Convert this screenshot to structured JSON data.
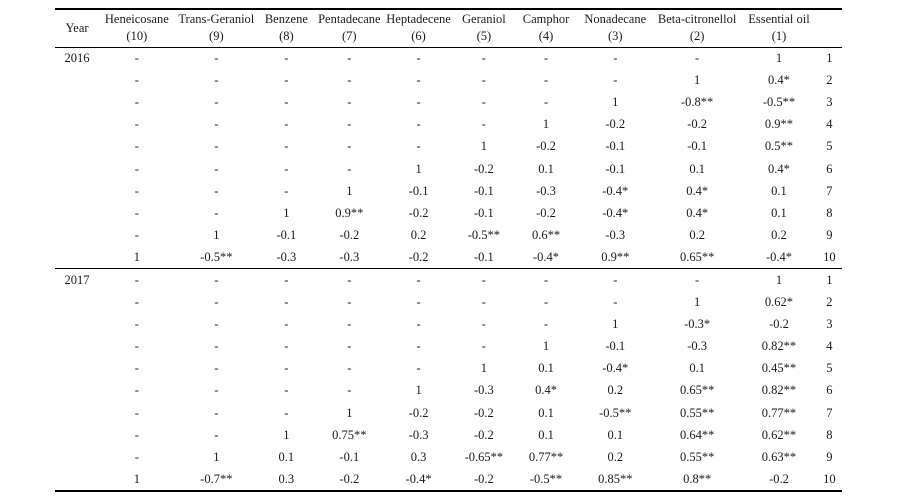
{
  "table": {
    "columns": [
      {
        "name": "Year",
        "sub": ""
      },
      {
        "name": "Heneicosane",
        "sub": "(10)"
      },
      {
        "name": "Trans-Geraniol",
        "sub": "(9)"
      },
      {
        "name": "Benzene",
        "sub": "(8)"
      },
      {
        "name": "Pentadecane",
        "sub": "(7)"
      },
      {
        "name": "Heptadecene",
        "sub": "(6)"
      },
      {
        "name": "Geraniol",
        "sub": "(5)"
      },
      {
        "name": "Camphor",
        "sub": "(4)"
      },
      {
        "name": "Nonadecane",
        "sub": "(3)"
      },
      {
        "name": "Beta-citronellol",
        "sub": "(2)"
      },
      {
        "name": "Essential oil",
        "sub": "(1)"
      },
      {
        "name": "",
        "sub": ""
      }
    ],
    "blocks": [
      {
        "year": "2016",
        "rows": [
          {
            "cells": [
              "-",
              "-",
              "-",
              "-",
              "-",
              "-",
              "-",
              "-",
              "-",
              "1"
            ],
            "num": "1"
          },
          {
            "cells": [
              "-",
              "-",
              "-",
              "-",
              "-",
              "-",
              "-",
              "-",
              "1",
              "0.4*"
            ],
            "num": "2"
          },
          {
            "cells": [
              "-",
              "-",
              "-",
              "-",
              "-",
              "-",
              "-",
              "1",
              "-0.8**",
              "-0.5**"
            ],
            "num": "3"
          },
          {
            "cells": [
              "-",
              "-",
              "-",
              "-",
              "-",
              "-",
              "1",
              "-0.2",
              "-0.2",
              "0.9**"
            ],
            "num": "4"
          },
          {
            "cells": [
              "-",
              "-",
              "-",
              "-",
              "-",
              "1",
              "-0.2",
              "-0.1",
              "-0.1",
              "0.5**"
            ],
            "num": "5"
          },
          {
            "cells": [
              "-",
              "-",
              "-",
              "-",
              "1",
              "-0.2",
              "0.1",
              "-0.1",
              "0.1",
              "0.4*"
            ],
            "num": "6"
          },
          {
            "cells": [
              "-",
              "-",
              "-",
              "1",
              "-0.1",
              "-0.1",
              "-0.3",
              "-0.4*",
              "0.4*",
              "0.1"
            ],
            "num": "7"
          },
          {
            "cells": [
              "-",
              "-",
              "1",
              "0.9**",
              "-0.2",
              "-0.1",
              "-0.2",
              "-0.4*",
              "0.4*",
              "0.1"
            ],
            "num": "8"
          },
          {
            "cells": [
              "-",
              "1",
              "-0.1",
              "-0.2",
              "0.2",
              "-0.5**",
              "0.6**",
              "-0.3",
              "0.2",
              "0.2"
            ],
            "num": "9"
          },
          {
            "cells": [
              "1",
              "-0.5**",
              "-0.3",
              "-0.3",
              "-0.2",
              "-0.1",
              "-0.4*",
              "0.9**",
              "0.65**",
              "-0.4*"
            ],
            "num": "10"
          }
        ]
      },
      {
        "year": "2017",
        "rows": [
          {
            "cells": [
              "-",
              "-",
              "-",
              "-",
              "-",
              "-",
              "-",
              "-",
              "-",
              "1"
            ],
            "num": "1"
          },
          {
            "cells": [
              "-",
              "-",
              "-",
              "-",
              "-",
              "-",
              "-",
              "-",
              "1",
              "0.62*"
            ],
            "num": "2"
          },
          {
            "cells": [
              "-",
              "-",
              "-",
              "-",
              "-",
              "-",
              "-",
              "1",
              "-0.3*",
              "-0.2"
            ],
            "num": "3"
          },
          {
            "cells": [
              "-",
              "-",
              "-",
              "-",
              "-",
              "-",
              "1",
              "-0.1",
              "-0.3",
              "0.82**"
            ],
            "num": "4"
          },
          {
            "cells": [
              "-",
              "-",
              "-",
              "-",
              "-",
              "1",
              "0.1",
              "-0.4*",
              "0.1",
              "0.45**"
            ],
            "num": "5"
          },
          {
            "cells": [
              "-",
              "-",
              "-",
              "-",
              "1",
              "-0.3",
              "0.4*",
              "0.2",
              "0.65**",
              "0.82**"
            ],
            "num": "6"
          },
          {
            "cells": [
              "-",
              "-",
              "-",
              "1",
              "-0.2",
              "-0.2",
              "0.1",
              "-0.5**",
              "0.55**",
              "0.77**"
            ],
            "num": "7"
          },
          {
            "cells": [
              "-",
              "-",
              "1",
              "0.75**",
              "-0.3",
              "-0.2",
              "0.1",
              "0.1",
              "0.64**",
              "0.62**"
            ],
            "num": "8"
          },
          {
            "cells": [
              "-",
              "1",
              "0.1",
              "-0.1",
              "0.3",
              "-0.65**",
              "0.77**",
              "0.2",
              "0.55**",
              "0.63**"
            ],
            "num": "9"
          },
          {
            "cells": [
              "1",
              "-0.7**",
              "0.3",
              "-0.2",
              "-0.4*",
              "-0.2",
              "-0.5**",
              "0.85**",
              "0.8**",
              "-0.2"
            ],
            "num": "10"
          }
        ]
      }
    ]
  }
}
